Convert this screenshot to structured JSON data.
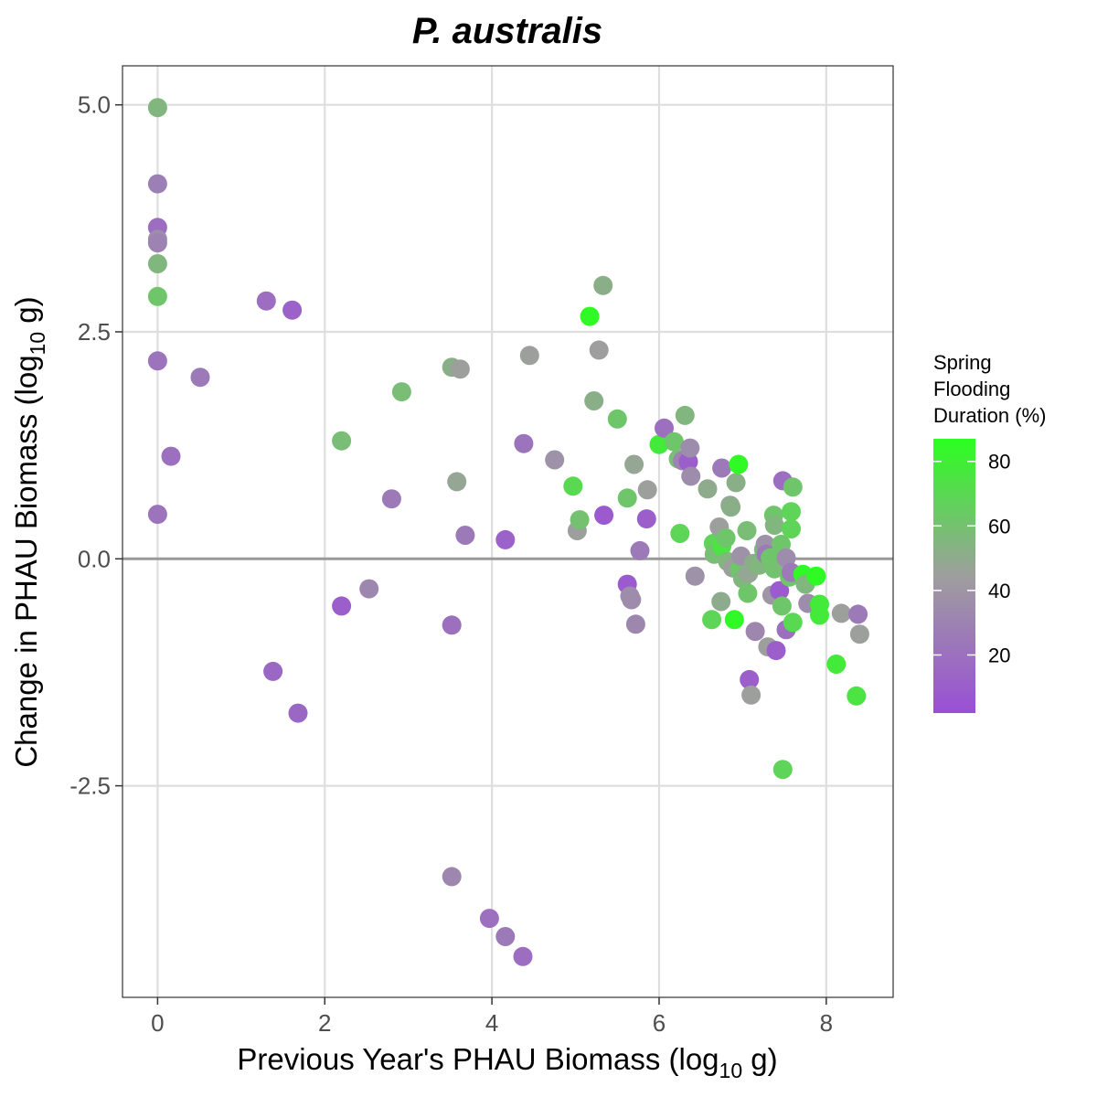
{
  "chart_data": {
    "type": "scatter",
    "title": "P. australis",
    "xlabel": {
      "main": "Previous Year's PHAU Biomass (log",
      "sub": "10",
      "unit": " g)"
    },
    "ylabel": {
      "main": "Change in PHAU Biomass (log",
      "sub": "10",
      "unit": " g)"
    },
    "xlim": [
      -0.42,
      8.8
    ],
    "ylim": [
      -4.83,
      5.43
    ],
    "x_ticks": [
      0,
      2,
      4,
      6,
      8
    ],
    "x_tick_labels": [
      "0",
      "2",
      "4",
      "6",
      "8"
    ],
    "y_ticks": [
      -2.5,
      0,
      2.5,
      5
    ],
    "y_tick_labels": [
      "-2.5",
      "0.0",
      "2.5",
      "5.0"
    ],
    "grid": true,
    "reference_line": {
      "y": 0,
      "color": "#999999"
    },
    "colors": {
      "low": "#9a4fd6",
      "mid": "#9e9e9e",
      "high": "#2bff1f"
    },
    "legend": {
      "title_lines": [
        "Spring",
        "Flooding",
        "Duration (%)"
      ],
      "range": [
        2,
        87
      ],
      "breaks": [
        20,
        40,
        60,
        80
      ],
      "break_labels": [
        "20",
        "40",
        "60",
        "80"
      ],
      "position": "right"
    },
    "points": [
      {
        "x": 0.0,
        "y": 4.97,
        "c": 55
      },
      {
        "x": 0.0,
        "y": 4.13,
        "c": 28
      },
      {
        "x": 0.0,
        "y": 3.65,
        "c": 18
      },
      {
        "x": 0.0,
        "y": 3.52,
        "c": 35
      },
      {
        "x": 0.0,
        "y": 3.48,
        "c": 30
      },
      {
        "x": 0.0,
        "y": 3.25,
        "c": 55
      },
      {
        "x": 0.0,
        "y": 2.89,
        "c": 62
      },
      {
        "x": 0.0,
        "y": 2.18,
        "c": 22
      },
      {
        "x": 0.0,
        "y": 0.49,
        "c": 22
      },
      {
        "x": 0.16,
        "y": 1.13,
        "c": 20
      },
      {
        "x": 0.51,
        "y": 2.0,
        "c": 25
      },
      {
        "x": 1.3,
        "y": 2.84,
        "c": 18
      },
      {
        "x": 1.61,
        "y": 2.74,
        "c": 12
      },
      {
        "x": 1.38,
        "y": -1.24,
        "c": 15
      },
      {
        "x": 1.68,
        "y": -1.7,
        "c": 15
      },
      {
        "x": 2.2,
        "y": 1.3,
        "c": 58
      },
      {
        "x": 2.2,
        "y": -0.52,
        "c": 10
      },
      {
        "x": 2.53,
        "y": -0.33,
        "c": 32
      },
      {
        "x": 2.8,
        "y": 0.66,
        "c": 25
      },
      {
        "x": 2.92,
        "y": 1.84,
        "c": 58
      },
      {
        "x": 3.52,
        "y": 2.11,
        "c": 52
      },
      {
        "x": 3.62,
        "y": 2.09,
        "c": 45
      },
      {
        "x": 3.58,
        "y": 0.85,
        "c": 48
      },
      {
        "x": 3.52,
        "y": -0.73,
        "c": 20
      },
      {
        "x": 3.68,
        "y": 0.26,
        "c": 25
      },
      {
        "x": 3.52,
        "y": -3.5,
        "c": 32
      },
      {
        "x": 3.97,
        "y": -3.96,
        "c": 20
      },
      {
        "x": 4.16,
        "y": -4.16,
        "c": 25
      },
      {
        "x": 4.37,
        "y": -4.38,
        "c": 18
      },
      {
        "x": 4.16,
        "y": 0.21,
        "c": 12
      },
      {
        "x": 4.38,
        "y": 1.27,
        "c": 22
      },
      {
        "x": 4.45,
        "y": 2.24,
        "c": 45
      },
      {
        "x": 4.75,
        "y": 1.09,
        "c": 38
      },
      {
        "x": 4.97,
        "y": 0.8,
        "c": 70
      },
      {
        "x": 5.02,
        "y": 0.31,
        "c": 45
      },
      {
        "x": 5.05,
        "y": 0.43,
        "c": 60
      },
      {
        "x": 5.17,
        "y": 2.67,
        "c": 85
      },
      {
        "x": 5.22,
        "y": 1.74,
        "c": 52
      },
      {
        "x": 5.28,
        "y": 2.3,
        "c": 45
      },
      {
        "x": 5.33,
        "y": 3.01,
        "c": 52
      },
      {
        "x": 5.34,
        "y": 0.48,
        "c": 8
      },
      {
        "x": 5.5,
        "y": 1.54,
        "c": 62
      },
      {
        "x": 5.62,
        "y": 0.67,
        "c": 62
      },
      {
        "x": 5.62,
        "y": -0.28,
        "c": 8
      },
      {
        "x": 5.65,
        "y": -0.41,
        "c": 35
      },
      {
        "x": 5.67,
        "y": -0.45,
        "c": 35
      },
      {
        "x": 5.7,
        "y": 1.04,
        "c": 48
      },
      {
        "x": 5.72,
        "y": -0.72,
        "c": 32
      },
      {
        "x": 5.77,
        "y": 0.09,
        "c": 25
      },
      {
        "x": 5.85,
        "y": 0.44,
        "c": 10
      },
      {
        "x": 5.86,
        "y": 0.76,
        "c": 45
      },
      {
        "x": 6.0,
        "y": 1.26,
        "c": 78
      },
      {
        "x": 6.06,
        "y": 1.44,
        "c": 20
      },
      {
        "x": 6.18,
        "y": 1.29,
        "c": 62
      },
      {
        "x": 6.23,
        "y": 1.1,
        "c": 58
      },
      {
        "x": 6.25,
        "y": 0.28,
        "c": 68
      },
      {
        "x": 6.28,
        "y": 1.08,
        "c": 30
      },
      {
        "x": 6.31,
        "y": 1.58,
        "c": 55
      },
      {
        "x": 6.35,
        "y": 1.07,
        "c": 10
      },
      {
        "x": 6.37,
        "y": 1.22,
        "c": 35
      },
      {
        "x": 6.38,
        "y": 0.91,
        "c": 35
      },
      {
        "x": 6.43,
        "y": -0.19,
        "c": 38
      },
      {
        "x": 6.58,
        "y": 0.77,
        "c": 50
      },
      {
        "x": 6.63,
        "y": -0.67,
        "c": 68
      },
      {
        "x": 6.65,
        "y": 0.17,
        "c": 68
      },
      {
        "x": 6.66,
        "y": 0.05,
        "c": 58
      },
      {
        "x": 6.72,
        "y": 0.35,
        "c": 45
      },
      {
        "x": 6.74,
        "y": -0.47,
        "c": 50
      },
      {
        "x": 6.75,
        "y": 1.0,
        "c": 25
      },
      {
        "x": 6.75,
        "y": 0.14,
        "c": 75
      },
      {
        "x": 6.8,
        "y": 0.23,
        "c": 62
      },
      {
        "x": 6.82,
        "y": -0.03,
        "c": 55
      },
      {
        "x": 6.85,
        "y": 0.59,
        "c": 48
      },
      {
        "x": 6.86,
        "y": 0.57,
        "c": 52
      },
      {
        "x": 6.88,
        "y": -0.1,
        "c": 45
      },
      {
        "x": 6.9,
        "y": -0.67,
        "c": 85
      },
      {
        "x": 6.92,
        "y": 0.84,
        "c": 52
      },
      {
        "x": 6.95,
        "y": 1.04,
        "c": 85
      },
      {
        "x": 6.96,
        "y": -0.12,
        "c": 62
      },
      {
        "x": 6.98,
        "y": 0.03,
        "c": 38
      },
      {
        "x": 7.0,
        "y": -0.22,
        "c": 55
      },
      {
        "x": 7.05,
        "y": 0.31,
        "c": 58
      },
      {
        "x": 7.06,
        "y": -0.38,
        "c": 62
      },
      {
        "x": 7.07,
        "y": -0.16,
        "c": 48
      },
      {
        "x": 7.08,
        "y": -1.33,
        "c": 10
      },
      {
        "x": 7.1,
        "y": -1.5,
        "c": 45
      },
      {
        "x": 7.15,
        "y": -0.8,
        "c": 32
      },
      {
        "x": 7.13,
        "y": -0.05,
        "c": 52
      },
      {
        "x": 7.2,
        "y": -0.07,
        "c": 55
      },
      {
        "x": 7.25,
        "y": 0.1,
        "c": 58
      },
      {
        "x": 7.27,
        "y": 0.16,
        "c": 38
      },
      {
        "x": 7.28,
        "y": 0.05,
        "c": 25
      },
      {
        "x": 7.3,
        "y": -0.97,
        "c": 45
      },
      {
        "x": 7.33,
        "y": 0.01,
        "c": 62
      },
      {
        "x": 7.35,
        "y": -0.4,
        "c": 40
      },
      {
        "x": 7.37,
        "y": 0.48,
        "c": 62
      },
      {
        "x": 7.38,
        "y": 0.37,
        "c": 55
      },
      {
        "x": 7.38,
        "y": -0.11,
        "c": 60
      },
      {
        "x": 7.4,
        "y": -1.01,
        "c": 10
      },
      {
        "x": 7.44,
        "y": -0.35,
        "c": 8
      },
      {
        "x": 7.46,
        "y": 0.16,
        "c": 62
      },
      {
        "x": 7.47,
        "y": -0.52,
        "c": 62
      },
      {
        "x": 7.48,
        "y": -2.32,
        "c": 68
      },
      {
        "x": 7.48,
        "y": 0.86,
        "c": 18
      },
      {
        "x": 7.5,
        "y": -0.07,
        "c": 58
      },
      {
        "x": 7.52,
        "y": -0.78,
        "c": 20
      },
      {
        "x": 7.52,
        "y": 0.01,
        "c": 35
      },
      {
        "x": 7.56,
        "y": -0.2,
        "c": 62
      },
      {
        "x": 7.58,
        "y": 0.52,
        "c": 68
      },
      {
        "x": 7.58,
        "y": 0.33,
        "c": 68
      },
      {
        "x": 7.58,
        "y": -0.15,
        "c": 25
      },
      {
        "x": 7.6,
        "y": 0.79,
        "c": 62
      },
      {
        "x": 7.6,
        "y": -0.7,
        "c": 70
      },
      {
        "x": 7.72,
        "y": -0.17,
        "c": 85
      },
      {
        "x": 7.75,
        "y": -0.28,
        "c": 55
      },
      {
        "x": 7.78,
        "y": -0.49,
        "c": 35
      },
      {
        "x": 7.88,
        "y": -0.19,
        "c": 85
      },
      {
        "x": 7.92,
        "y": -0.5,
        "c": 78
      },
      {
        "x": 7.92,
        "y": -0.62,
        "c": 78
      },
      {
        "x": 8.12,
        "y": -1.16,
        "c": 78
      },
      {
        "x": 8.18,
        "y": -0.6,
        "c": 45
      },
      {
        "x": 8.36,
        "y": -1.51,
        "c": 75
      },
      {
        "x": 8.38,
        "y": -0.61,
        "c": 25
      },
      {
        "x": 8.4,
        "y": -0.83,
        "c": 45
      }
    ]
  }
}
